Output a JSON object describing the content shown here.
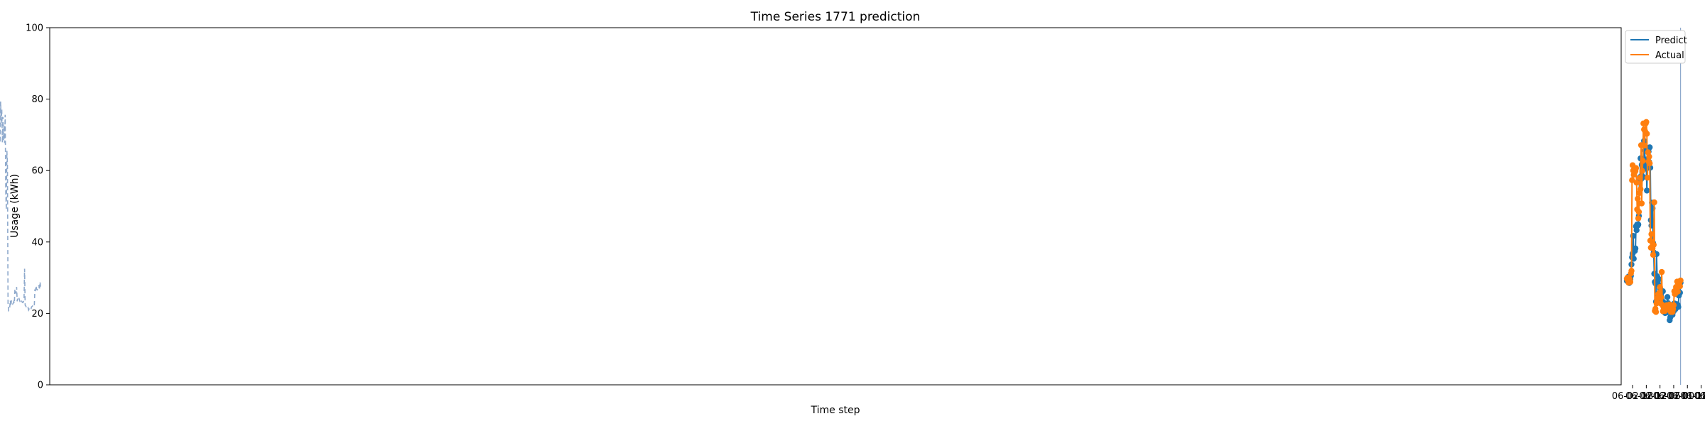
{
  "chart_data": {
    "type": "line",
    "title": "Time Series 1771 prediction",
    "xlabel": "Time step",
    "ylabel": "Usage (kWh)",
    "ylim": [
      0,
      100
    ],
    "yticks": [
      0,
      20,
      40,
      60,
      80,
      100
    ],
    "x_start": "05-31 19:00",
    "x_step_minutes": 15,
    "xlim": [
      "05-31 15:00",
      "06-02 23:00"
    ],
    "xticks": [
      {
        "x": "06-01 00:00",
        "label": "06-01 00"
      },
      {
        "x": "06-01 06:00",
        "label": "06-01 06"
      },
      {
        "x": "06-01 12:00",
        "label": "06-01 12"
      },
      {
        "x": "06-01 18:00",
        "label": "06-01 18"
      },
      {
        "x": "06-02 00:00",
        "label": "06-02 00"
      },
      {
        "x": "06-02 06:00",
        "label": "06-02 06"
      },
      {
        "x": "06-02 12:00",
        "label": "06-02 12"
      },
      {
        "x": "06-02 18:00",
        "label": "06-02 18"
      }
    ],
    "forecast_start": "06-01 21:00",
    "legend_position": "top-right",
    "colors": {
      "history": "#8ea9cc",
      "predict": "#1f77b4",
      "actual": "#ff7f0e",
      "divider": "#8ea9cc"
    },
    "history": {
      "x_start": "05-31 19:00",
      "values": [
        27.5,
        28.8,
        26.6,
        27.9,
        27.2,
        26.9,
        26.6,
        26.8,
        27.7,
        26.4,
        26.5,
        22.2,
        21.9,
        22.2,
        22.1,
        21.9,
        21.8,
        21.1,
        20.9,
        21.0,
        21.2,
        20.9,
        21.6,
        21.4,
        21.3,
        21.7,
        22.1,
        22.3,
        32.5,
        23.8,
        23.3,
        23.0,
        23.1,
        23.4,
        23.2,
        22.9,
        23.3,
        23.8,
        24.3,
        24.6,
        24.3,
        23.4,
        27.4,
        25.6,
        26.1,
        26.8,
        22.8,
        23.3,
        22.8,
        22.6,
        22.9,
        23.6,
        22.1,
        23.6,
        21.7,
        21.0,
        20.8,
        22.9,
        61.8,
        65.5,
        49.0,
        53.9,
        75.6,
        67.7,
        72.9,
        68.5,
        75.0,
        67.8,
        77.2,
        72.9,
        79.3,
        67.8,
        79.8,
        70.4,
        76.1,
        80.3,
        71.6,
        80.3,
        72.1,
        80.3,
        70.6,
        62.7,
        52.0,
        50.1,
        43.6,
        52.3,
        47.8,
        47.8,
        47.8,
        31.6,
        50.0,
        42.6,
        43.4,
        49.6,
        33.1,
        29.4,
        32.4,
        29.0,
        30.5,
        29.8,
        30.3,
        29.8,
        32.5,
        32.0,
        29.6
      ]
    },
    "series": [
      {
        "name": "Predict",
        "x_start": "06-01 21:00",
        "values": [
          28.6,
          25.8,
          25.9,
          25.0,
          21.8,
          22.4,
          22.2,
          22.6,
          22.3,
          21.2,
          22.2,
          22.8,
          20.6,
          21.1,
          19.6,
          21.3,
          21.3,
          21.2,
          18.9,
          18.1,
          20.6,
          20.6,
          22.9,
          24.6,
          20.3,
          22.4,
          21.9,
          20.1,
          22.2,
          21.6,
          23.1,
          26.2,
          23.4,
          23.8,
          24.1,
          25.3,
          27.1,
          27.9,
          29.6,
          25.1,
          29.1,
          30.4,
          36.6,
          23.3,
          28.4,
          28.8,
          31.1,
          37.1,
          39.7,
          49.4,
          51.0,
          44.6,
          46.1,
          60.8,
          66.5,
          62.4,
          65.3,
          61.3,
          62.9,
          54.4,
          60.5,
          61.5,
          63.1,
          65.6,
          68.3,
          58.2,
          60.8,
          61.2,
          61.6,
          57.6,
          63.4,
          58.2,
          57.0,
          47.3,
          44.9,
          44.6,
          44.9,
          43.3,
          44.4,
          38.2,
          37.5,
          38.0,
          35.3,
          41.7,
          36.7,
          35.7,
          33.7,
          30.5,
          29.6,
          29.6,
          28.5,
          30.3,
          29.2,
          29.3,
          29.1
        ]
      },
      {
        "name": "Actual",
        "x_start": "06-01 21:00",
        "values": [
          29.2,
          27.6,
          28.2,
          28.2,
          28.1,
          26.1,
          28.9,
          26.1,
          27.4,
          25.6,
          25.4,
          26.2,
          22.3,
          21.2,
          20.4,
          21.9,
          21.5,
          20.4,
          21.7,
          22.5,
          22.0,
          21.4,
          22.2,
          21.3,
          22.3,
          21.2,
          21.2,
          20.7,
          21.4,
          21.5,
          21.8,
          20.6,
          22.4,
          31.6,
          24.5,
          22.8,
          27.4,
          25.8,
          25.2,
          25.4,
          24.3,
          23.0,
          22.8,
          20.4,
          21.3,
          20.7,
          51.1,
          39.2,
          36.4,
          38.3,
          38.3,
          42.2,
          38.4,
          40.4,
          62.0,
          63.9,
          62.5,
          65.1,
          58.0,
          70.3,
          73.6,
          73.2,
          71.0,
          67.0,
          71.5,
          73.2,
          62.7,
          59.9,
          50.8,
          67.1,
          54.8,
          58.0,
          53.7,
          48.4,
          46.6,
          52.1,
          49.1,
          56.6,
          60.7,
          59.9,
          59.6,
          60.4,
          58.8,
          60.0,
          61.5,
          57.3,
          31.9,
          31.2,
          28.8,
          29.5,
          29.8,
          28.6,
          29.2,
          30.0,
          29.7
        ]
      }
    ]
  }
}
